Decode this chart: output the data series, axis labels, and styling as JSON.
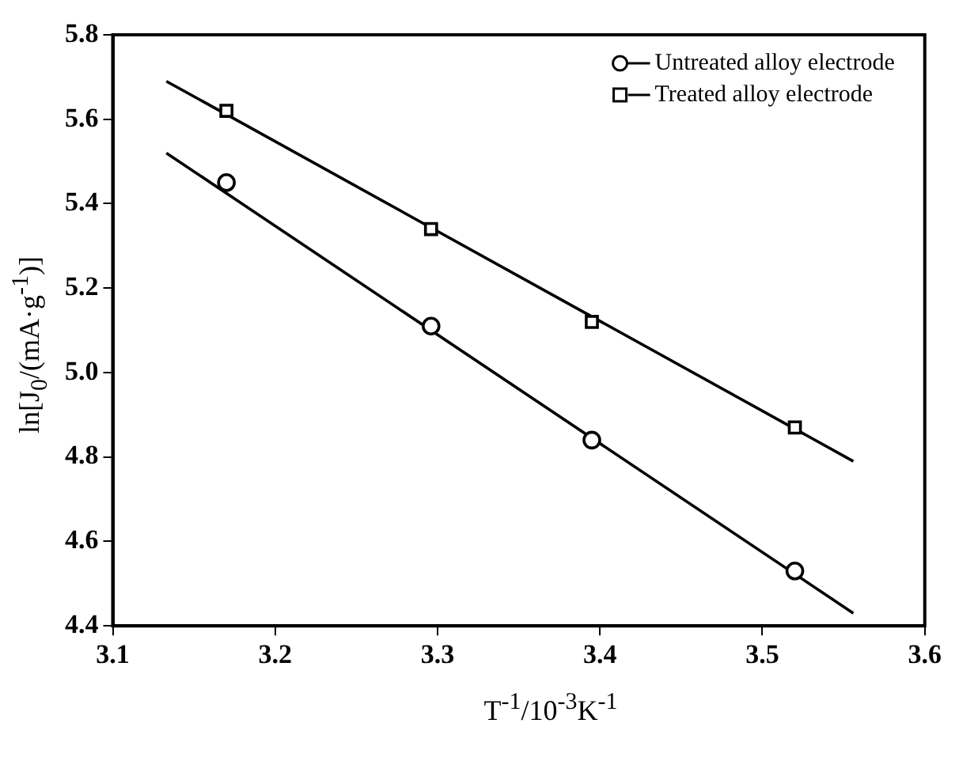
{
  "chart_data": {
    "type": "scatter",
    "xlabel": "T$^{-1}$/10$^{-3}$K$^{-1}$",
    "ylabel": "ln[J$_{0}$/(mA·g$^{-1}$)]",
    "xlim": [
      3.1,
      3.6
    ],
    "xticks": [
      3.1,
      3.2,
      3.3,
      3.4,
      3.5,
      3.6
    ],
    "ylim": [
      4.4,
      5.8
    ],
    "yticks": [
      4.4,
      4.6,
      4.8,
      {
        "value": 5,
        "label": "5.0"
      },
      5.2,
      5.4,
      5.6,
      5.8
    ],
    "grid": false,
    "legend": "top right",
    "series": [
      {
        "name": "Untreated alloy electrode",
        "marker": "circle",
        "color": "#000000",
        "x": [
          3.17,
          3.296,
          3.395,
          3.52
        ],
        "values": [
          5.45,
          5.11,
          4.84,
          4.53
        ]
      },
      {
        "name": "Treated alloy electrode",
        "marker": "square",
        "color": "#000000",
        "x": [
          3.17,
          3.296,
          3.395,
          3.52
        ],
        "values": [
          5.62,
          5.34,
          5.12,
          4.87
        ]
      },
      {
        "type": "line",
        "marker": "none",
        "line_style": "solid",
        "color": "#000000",
        "x": [
          3.133,
          3.556
        ],
        "values": [
          5.52,
          4.43
        ]
      },
      {
        "type": "line",
        "marker": "none",
        "line_style": "solid",
        "color": "#000000",
        "x": [
          3.133,
          3.556
        ],
        "values": [
          5.69,
          4.79
        ]
      }
    ]
  }
}
